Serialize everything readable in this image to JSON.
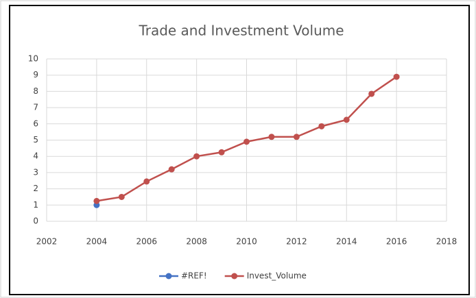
{
  "chart_data": {
    "type": "line",
    "title": "Trade and Investment Volume",
    "series": [
      {
        "name": "#REF!",
        "color": "#4472c4",
        "x": [
          2004
        ],
        "values": [
          1.0
        ]
      },
      {
        "name": "Invest_Volume",
        "color": "#c0504d",
        "x": [
          2004,
          2005,
          2006,
          2007,
          2008,
          2009,
          2010,
          2011,
          2012,
          2013,
          2014,
          2015,
          2016
        ],
        "values": [
          1.25,
          1.5,
          2.45,
          3.2,
          4.0,
          4.25,
          4.9,
          5.2,
          5.2,
          5.85,
          6.25,
          7.85,
          8.9
        ]
      }
    ],
    "xlim": [
      2002,
      2018
    ],
    "xticks": [
      2002,
      2004,
      2006,
      2008,
      2010,
      2012,
      2014,
      2016,
      2018
    ],
    "ylim": [
      0,
      10
    ],
    "yticks": [
      0,
      1,
      2,
      3,
      4,
      5,
      6,
      7,
      8,
      9,
      10
    ],
    "grid": true,
    "legend": "bottom"
  }
}
